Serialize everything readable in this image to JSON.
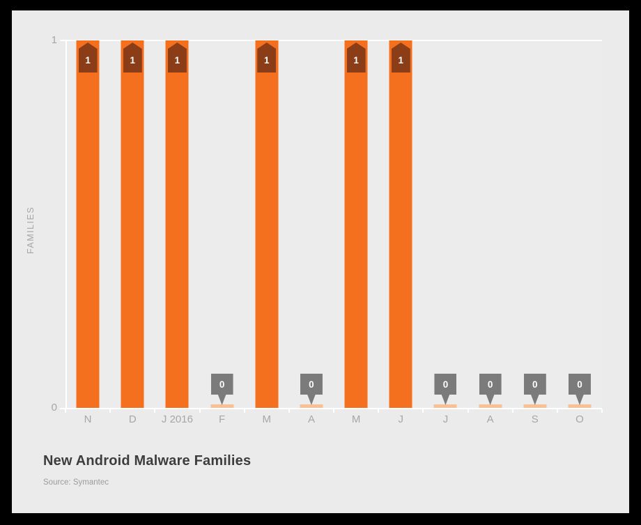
{
  "frame": {
    "background": "#000000"
  },
  "card": {
    "background": "#ebebeb",
    "plot_background": "#ececec"
  },
  "chart_data": {
    "type": "bar",
    "title": "New Android Malware Families",
    "source": "Source: Symantec",
    "ylabel": "FAMILIES",
    "categories": [
      "N",
      "D",
      "J 2016",
      "F",
      "M",
      "A",
      "M",
      "J",
      "J",
      "A",
      "S",
      "O"
    ],
    "values": [
      1,
      1,
      1,
      0,
      1,
      0,
      1,
      1,
      0,
      0,
      0,
      0
    ],
    "ylim": [
      0,
      1
    ],
    "ytick_labels": [
      "1",
      "0"
    ],
    "gridlines_y": [
      1
    ],
    "legend": "none",
    "colors": {
      "bar": "#f4701e",
      "bar-label-box": "#8a3d17",
      "zero-label-box": "#7b7b7b",
      "zero-marker": "#f8c094",
      "axis": "#ffffff",
      "tick-text": "#a6a6a6",
      "title-text": "#3d3d3d",
      "source-text": "#9b9b9b",
      "card-bg": "#ebebeb",
      "plot-bg": "#ececec",
      "frame-bg": "#000000"
    }
  }
}
